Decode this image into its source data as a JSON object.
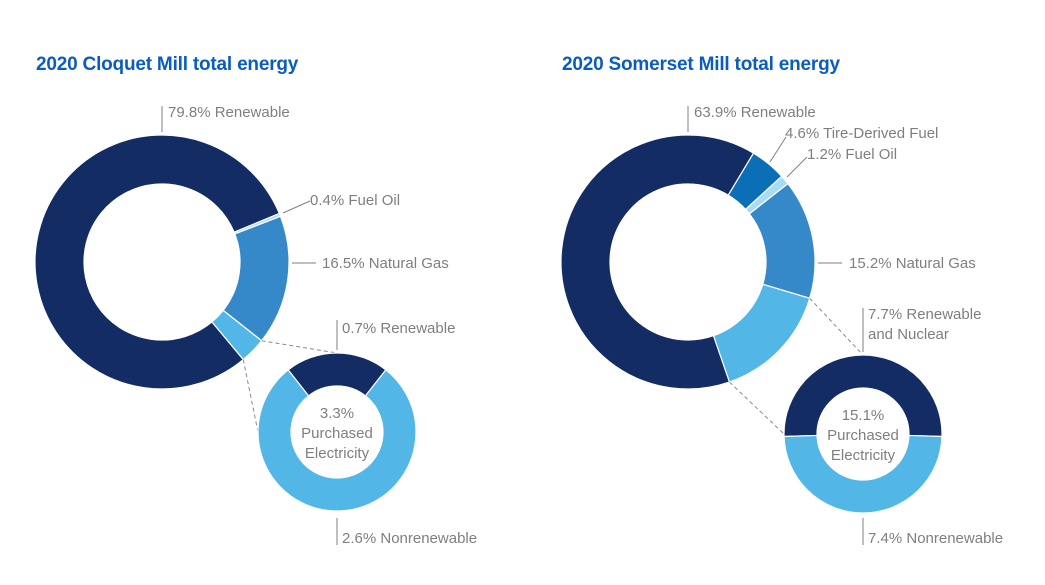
{
  "colors": {
    "renewable": "#132d64",
    "tire_derived_fuel": "#0a6fb7",
    "fuel_oil": "#a6dcf5",
    "natural_gas": "#3589c9",
    "purchased_electricity": "#52b6e6",
    "title": "#0b5cbf",
    "label": "#7f7f82"
  },
  "chart_data": [
    {
      "type": "pie",
      "title": "2020 Cloquet Mill total energy",
      "slices": [
        {
          "key": "renewable",
          "label": "79.8% Renewable",
          "value": 79.8,
          "color": "#132d64"
        },
        {
          "key": "fuel_oil",
          "label": "0.4% Fuel Oil",
          "value": 0.4,
          "color": "#a6dcf5"
        },
        {
          "key": "natural_gas",
          "label": "16.5% Natural Gas",
          "value": 16.5,
          "color": "#3589c9"
        },
        {
          "key": "purchased_electricity",
          "label": "3.3% Purchased Electricity",
          "value": 3.3,
          "color": "#52b6e6"
        }
      ],
      "breakdown": {
        "of": "purchased_electricity",
        "center_label": [
          "3.3%",
          "Purchased",
          "Electricity"
        ],
        "slices": [
          {
            "key": "renewable",
            "label": "0.7% Renewable",
            "value": 0.7,
            "color": "#132d64"
          },
          {
            "key": "nonrenewable",
            "label": "2.6% Nonrenewable",
            "value": 2.6,
            "color": "#52b6e6"
          }
        ]
      }
    },
    {
      "type": "pie",
      "title": "2020 Somerset Mill total energy",
      "slices": [
        {
          "key": "renewable",
          "label": "63.9% Renewable",
          "value": 63.9,
          "color": "#132d64"
        },
        {
          "key": "tire_derived_fuel",
          "label": "4.6% Tire-Derived Fuel",
          "value": 4.6,
          "color": "#0a6fb7"
        },
        {
          "key": "fuel_oil",
          "label": "1.2% Fuel Oil",
          "value": 1.2,
          "color": "#a6dcf5"
        },
        {
          "key": "natural_gas",
          "label": "15.2% Natural Gas",
          "value": 15.2,
          "color": "#3589c9"
        },
        {
          "key": "purchased_electricity",
          "label": "15.1% Purchased Electricity",
          "value": 15.1,
          "color": "#52b6e6"
        }
      ],
      "breakdown": {
        "of": "purchased_electricity",
        "center_label": [
          "15.1%",
          "Purchased",
          "Electricity"
        ],
        "slices": [
          {
            "key": "renewable_nuclear",
            "label": "7.7% Renewable and Nuclear",
            "label_lines": [
              "7.7% Renewable",
              "and Nuclear"
            ],
            "value": 7.7,
            "color": "#132d64"
          },
          {
            "key": "nonrenewable",
            "label": "7.4% Nonrenewable",
            "value": 7.4,
            "color": "#52b6e6"
          }
        ]
      }
    }
  ]
}
